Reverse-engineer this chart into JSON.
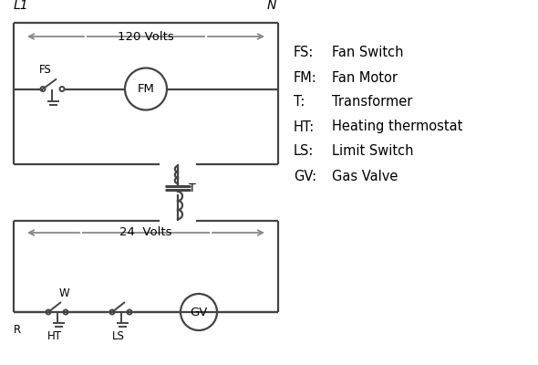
{
  "bg_color": "#ffffff",
  "line_color": "#444444",
  "text_color": "#000000",
  "legend_items": [
    [
      "FS:",
      "Fan Switch"
    ],
    [
      "FM:",
      "Fan Motor"
    ],
    [
      "T:",
      "Transformer"
    ],
    [
      "HT:",
      "Heating thermostat"
    ],
    [
      "LS:",
      "Limit Switch"
    ],
    [
      "GV:",
      "Gas Valve"
    ]
  ],
  "label_L1": "L1",
  "label_N": "N",
  "label_120V": "120 Volts",
  "label_24V": "24  Volts",
  "label_T": "T",
  "label_R": "R",
  "label_W": "W",
  "label_HT": "HT",
  "label_LS": "LS",
  "label_FS": "FS",
  "label_FM": "FM",
  "label_GV": "GV"
}
